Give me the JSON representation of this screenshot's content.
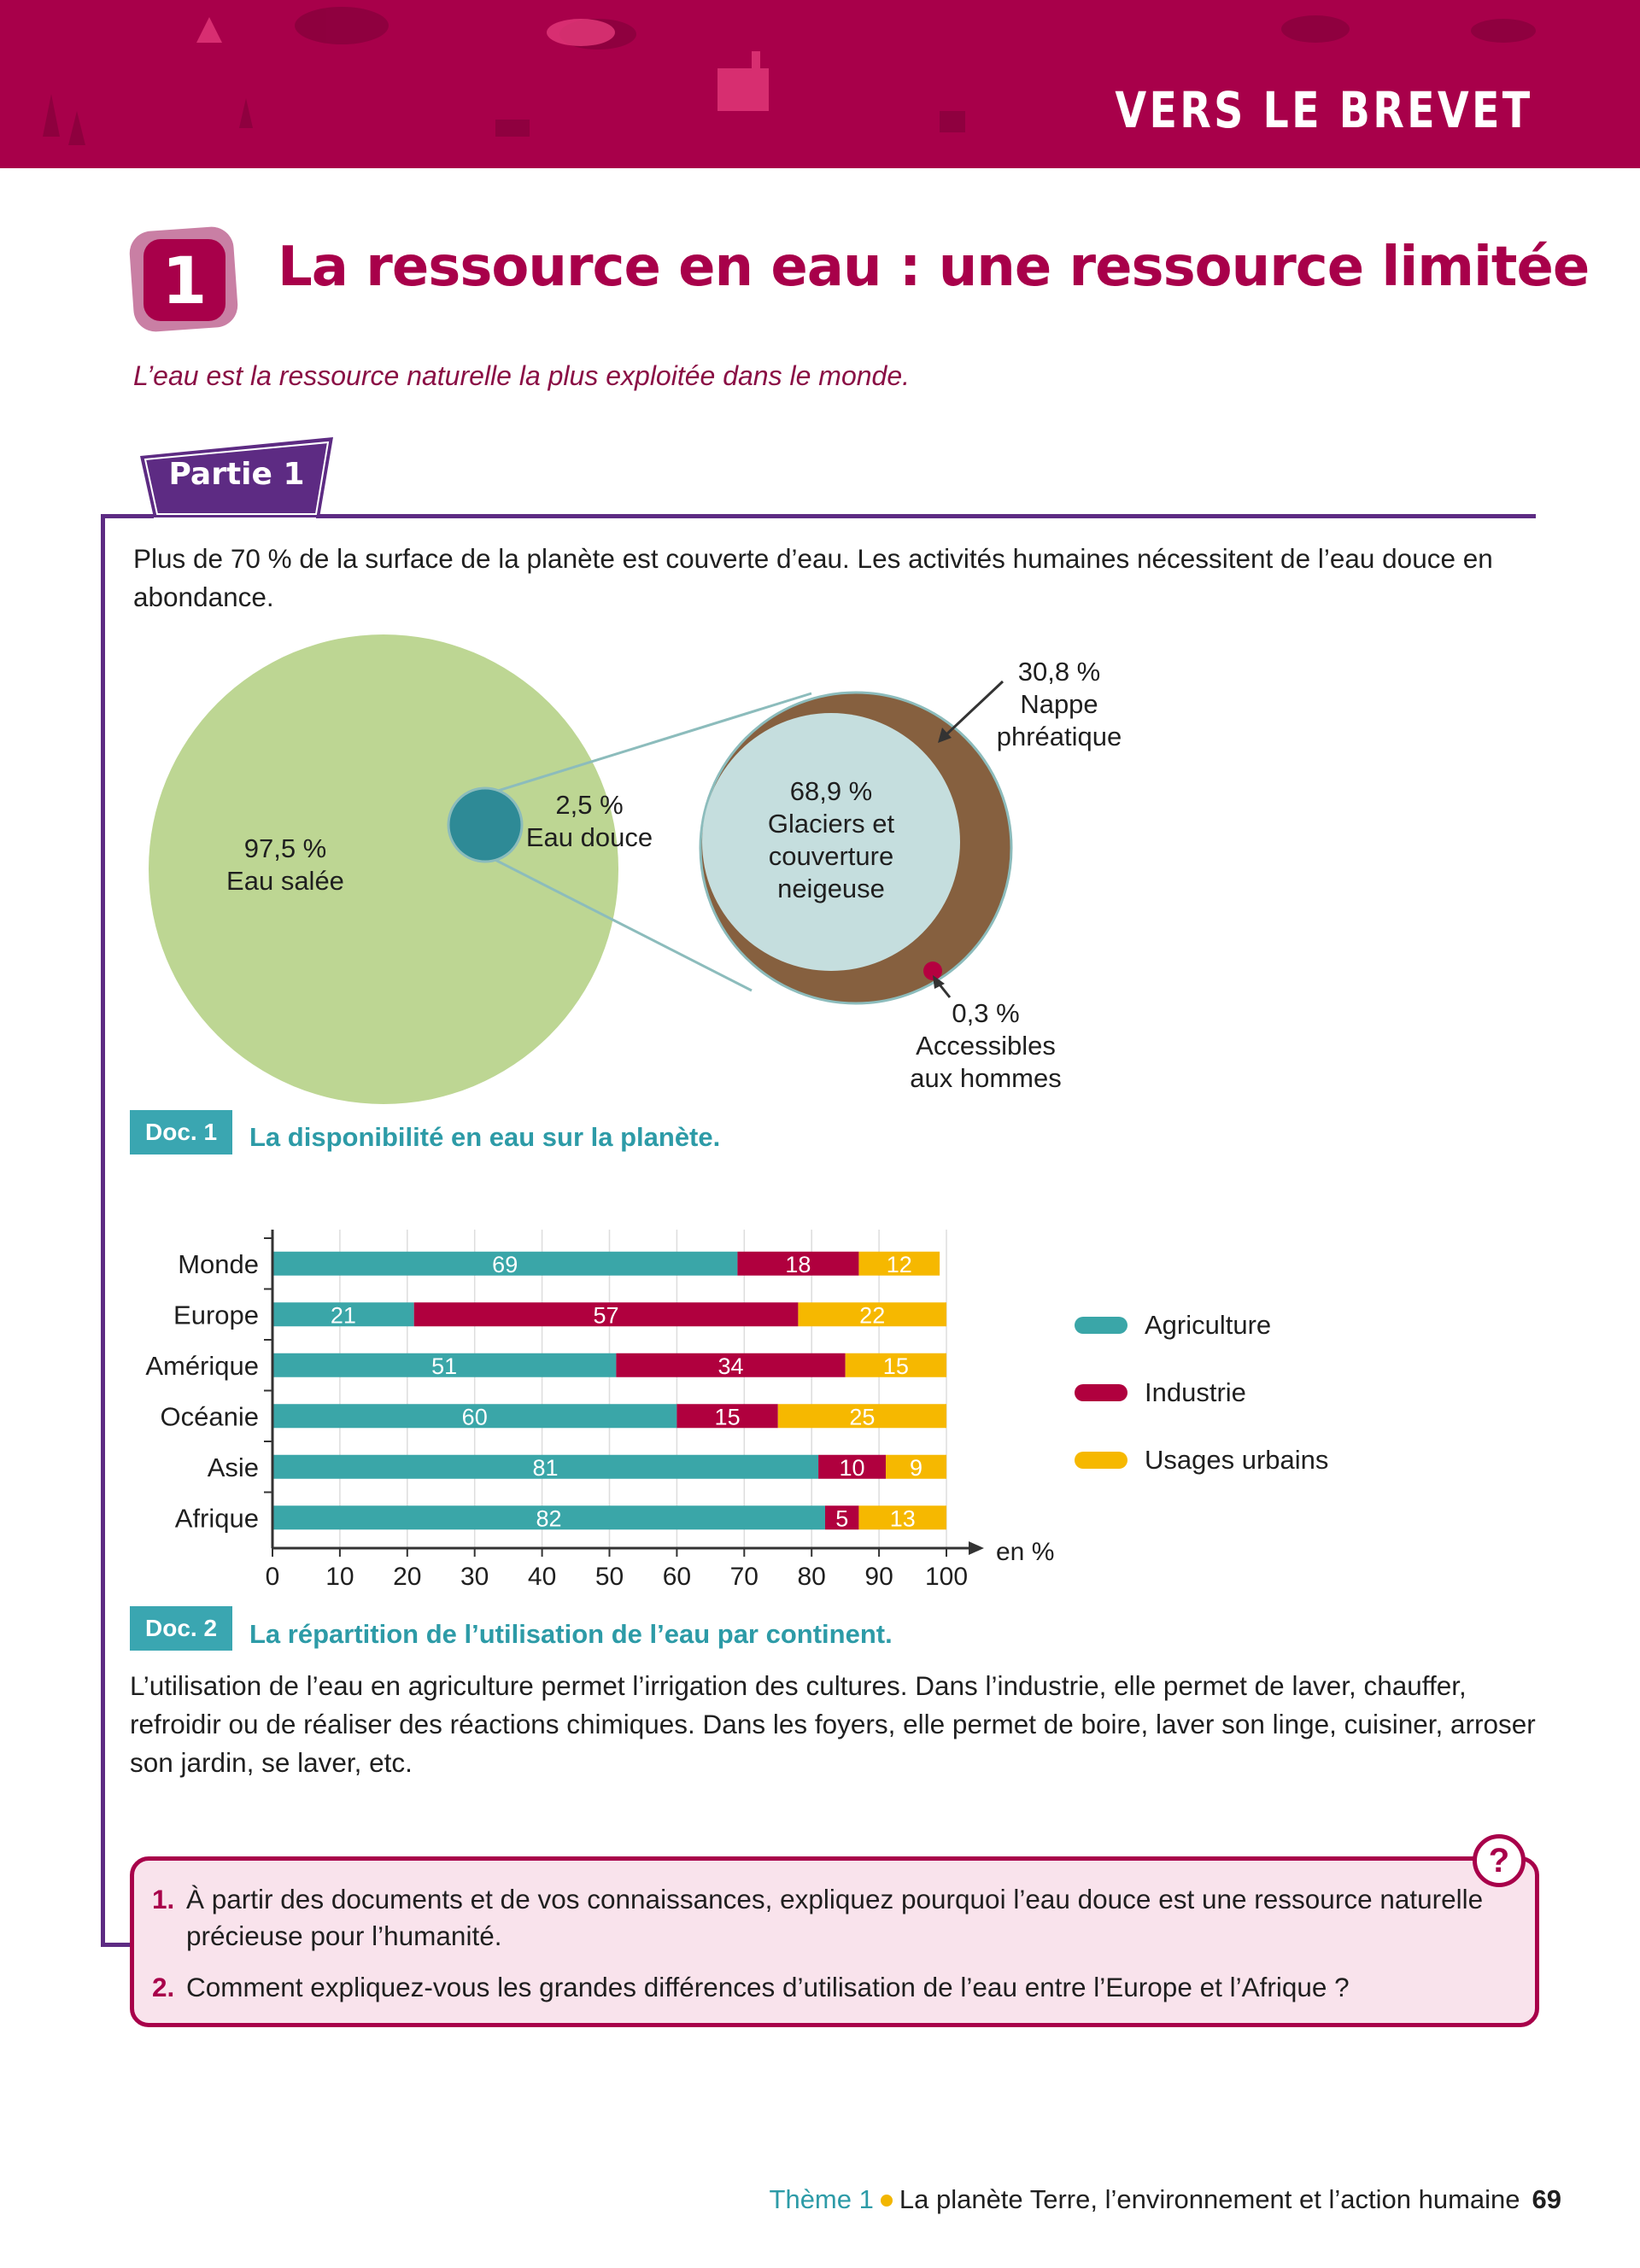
{
  "header": {
    "banner_title": "VERS LE BREVET"
  },
  "section": {
    "number": "1",
    "title": "La ressource en eau : une ressource limitée",
    "intro": "L’eau est la ressource naturelle la plus exploitée dans le monde."
  },
  "partie": {
    "label": "Partie 1",
    "paragraph": "Plus de 70 % de la surface de la planète est couverte d’eau. Les activités humaines nécessitent de l’eau douce en abondance."
  },
  "doc1": {
    "tag": "Doc. 1",
    "caption": "La disponibilité en eau sur la planète.",
    "salt_value": "97,5 %",
    "salt_label": "Eau salée",
    "fresh_value": "2,5 %",
    "fresh_label": "Eau douce",
    "glacier_value": "68,9 %",
    "glacier_label_1": "Glaciers et",
    "glacier_label_2": "couverture",
    "glacier_label_3": "neigeuse",
    "ground_value": "30,8 %",
    "ground_label_1": "Nappe",
    "ground_label_2": "phréatique",
    "access_value": "0,3 %",
    "access_label_1": "Accessibles",
    "access_label_2": "aux hommes",
    "colors": {
      "salt": "#bdd693",
      "fresh": "#2e8a96",
      "glacier": "#c5dede",
      "ground": "#86603f",
      "access": "#b50040"
    }
  },
  "doc2": {
    "tag": "Doc. 2",
    "caption": "La répartition de l’utilisation de l’eau par continent.",
    "paragraph": "L’utilisation de l’eau en agriculture permet l’irrigation des cultures. Dans l’industrie, elle permet de laver, chauffer, refroidir ou de réaliser des réactions chimiques. Dans les foyers, elle permet de boire, laver son linge, cuisiner, arroser son jardin, se laver, etc."
  },
  "chart_data": {
    "type": "bar",
    "orientation": "horizontal",
    "stacked": true,
    "categories": [
      "Monde",
      "Europe",
      "Amérique",
      "Océanie",
      "Asie",
      "Afrique"
    ],
    "series": [
      {
        "name": "Agriculture",
        "color": "#3aa6a8",
        "values": [
          69,
          21,
          51,
          60,
          81,
          82
        ]
      },
      {
        "name": "Industrie",
        "color": "#b0003e",
        "values": [
          18,
          57,
          34,
          15,
          10,
          5
        ]
      },
      {
        "name": "Usages urbains",
        "color": "#f6b800",
        "values": [
          12,
          22,
          15,
          25,
          9,
          13
        ]
      }
    ],
    "xlabel": "en %",
    "xlim": [
      0,
      100
    ],
    "xticks": [
      0,
      10,
      20,
      30,
      40,
      50,
      60,
      70,
      80,
      90,
      100
    ],
    "grid": true,
    "legend": "right"
  },
  "questions": [
    {
      "num": "1.",
      "text": "À partir des documents et de vos connaissances, expliquez pourquoi l’eau douce est une ressource naturelle précieuse pour l’humanité."
    },
    {
      "num": "2.",
      "text": "Comment expliquez-vous les grandes différences d’utilisation de l’eau entre l’Europe et l’Afrique ?"
    }
  ],
  "question_icon": "?",
  "footer": {
    "theme": "Thème 1",
    "title": "La planète Terre, l’environnement et l’action humaine",
    "page": "69"
  }
}
